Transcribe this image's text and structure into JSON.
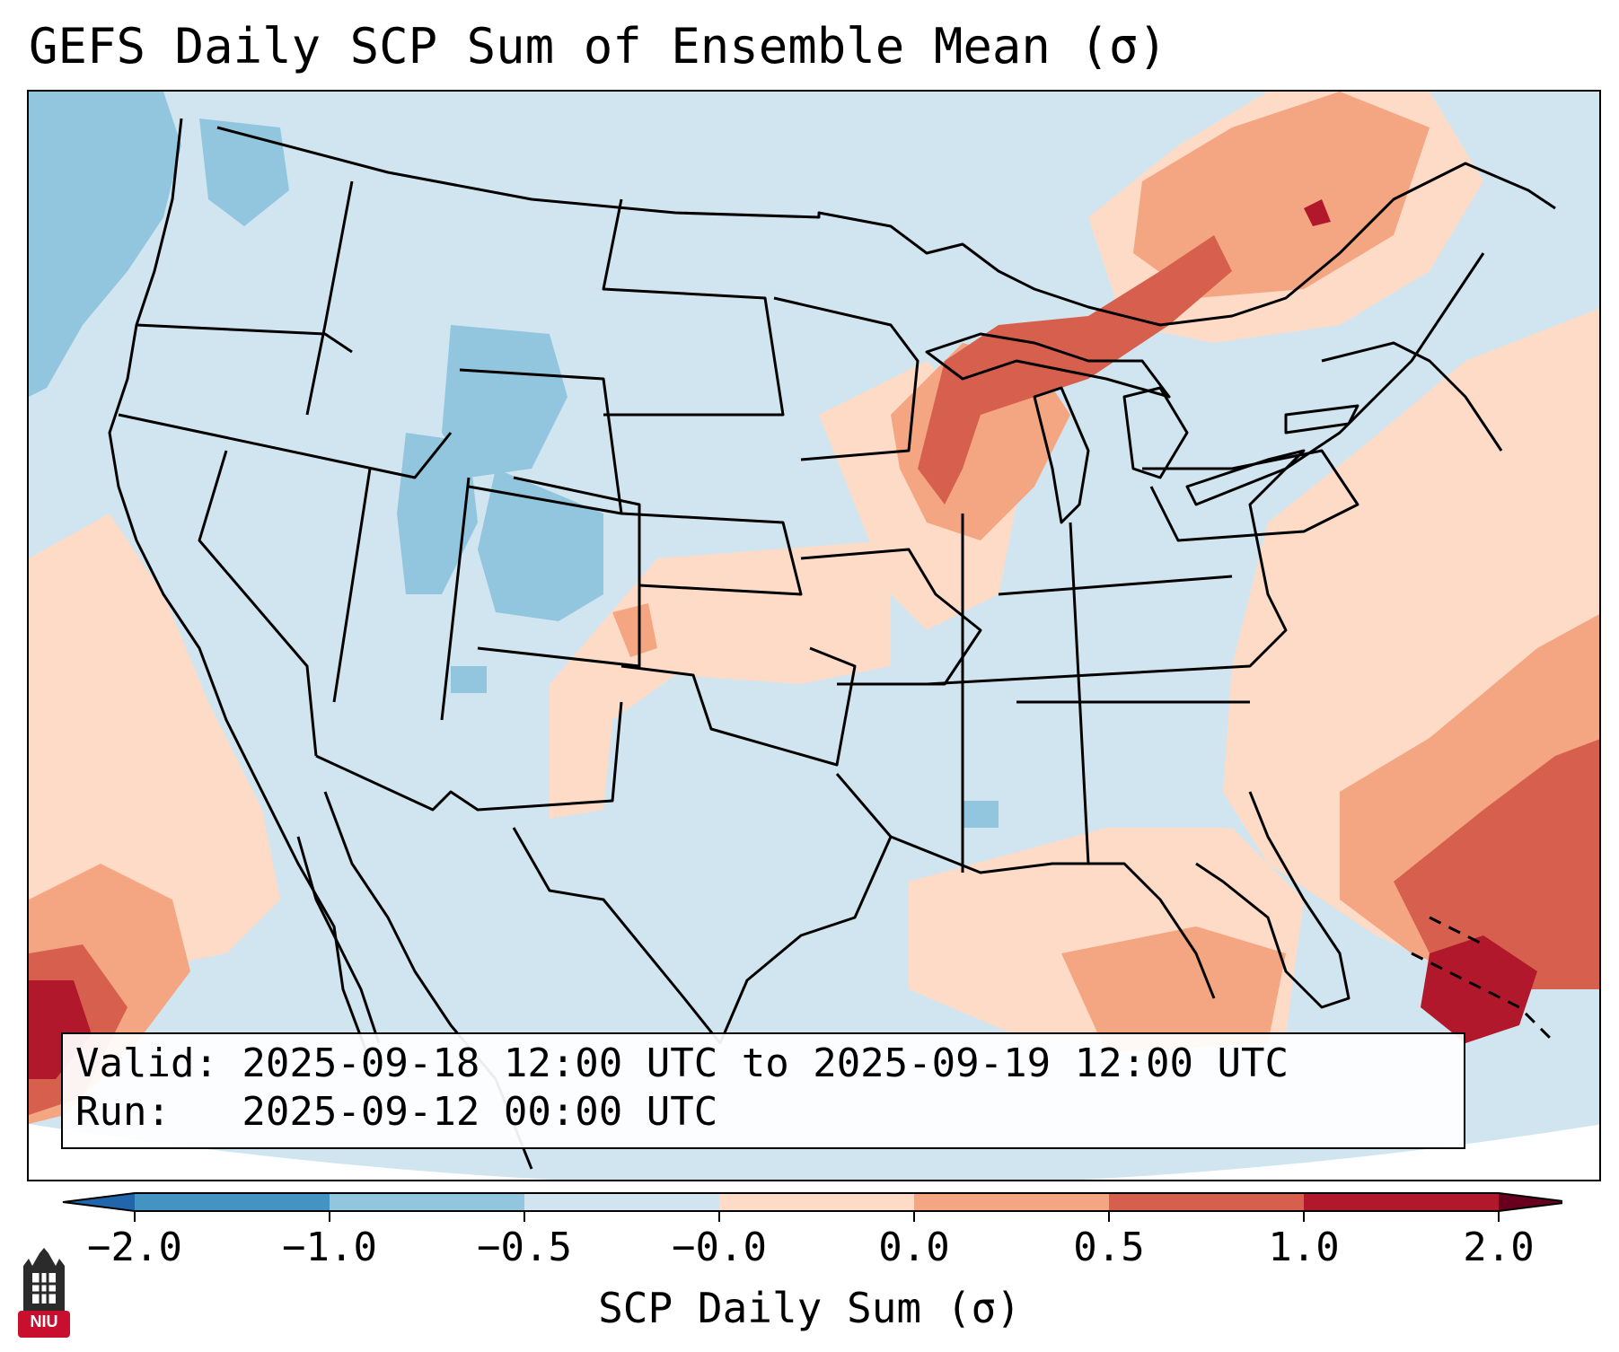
{
  "title": "GEFS Daily SCP Sum of Ensemble Mean (σ)",
  "info": {
    "valid_line": "Valid: 2025-09-18 12:00 UTC to 2025-09-19 12:00 UTC",
    "run_line": "Run:   2025-09-12 00:00 UTC"
  },
  "colorbar": {
    "label": "SCP Daily Sum (σ)",
    "ticks": [
      "−2.0",
      "−1.0",
      "−0.5",
      "−0.0",
      "0.0",
      "0.5",
      "1.0",
      "2.0"
    ],
    "colors": [
      "#4393c3",
      "#92c5de",
      "#d1e5f0",
      "#fddbc7",
      "#f4a582",
      "#d6604d",
      "#b2182b"
    ],
    "extend_low": "#2166ac",
    "extend_high": "#67001f"
  },
  "logo": {
    "text": "NIU"
  },
  "map": {
    "projection": "Lambert Conformal (CONUS)",
    "colors": {
      "background": "#d1e5f0",
      "weak_blue": "#92c5de",
      "light_red": "#fddbc7",
      "mid_red": "#f4a582",
      "red": "#d6604d",
      "dark_red": "#b2182b"
    }
  }
}
